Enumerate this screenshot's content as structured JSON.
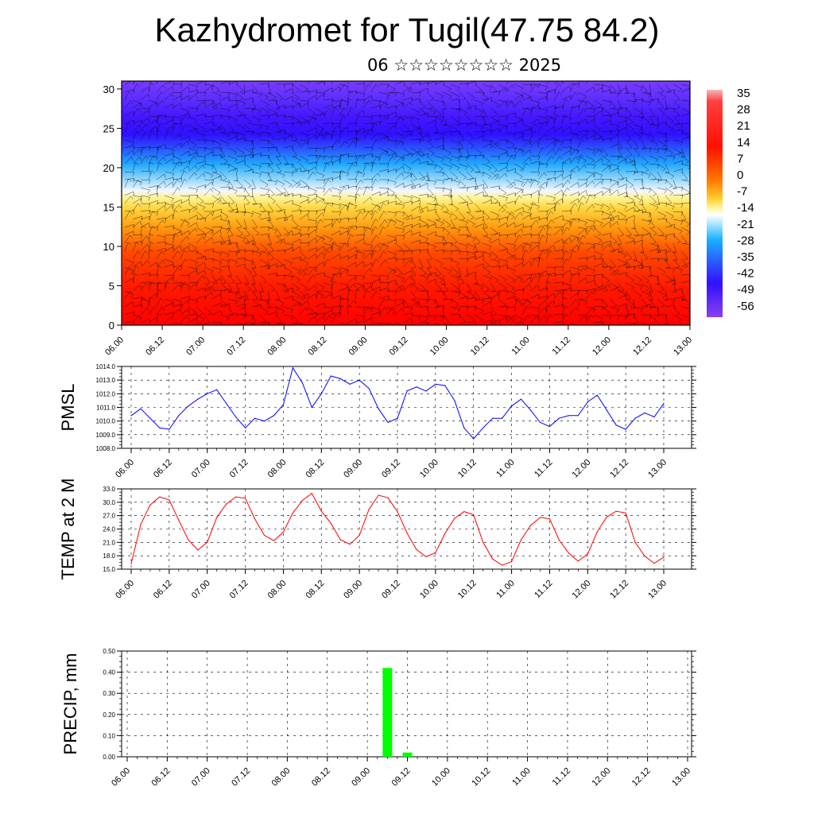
{
  "header": {
    "title": "Kazhydromet for Tugil(47.75 84.2)",
    "subtitle": "06 ☆☆☆☆☆☆☆☆ 2025"
  },
  "time_labels": [
    "06.00",
    "06.12",
    "07.00",
    "07.12",
    "08.00",
    "08.12",
    "09.00",
    "09.12",
    "10.00",
    "10.12",
    "11.00",
    "11.12",
    "12.00",
    "12.12",
    "13.00"
  ],
  "colors": {
    "pmsl_line": "#0000ff",
    "temp_line": "#ff0000",
    "precip_bar": "#00ff00",
    "colormap": [
      "#ff0000",
      "#ff5a00",
      "#ffa020",
      "#ffe04a",
      "#fff7b0",
      "#a8e0ff",
      "#28b0ff",
      "#3050ff",
      "#3000ff",
      "#7a2cff"
    ]
  },
  "chart_data": [
    {
      "id": "cross-section",
      "type": "heatmap",
      "title": "",
      "xlabel": "",
      "ylabel": "",
      "ylim": [
        0,
        31
      ],
      "y_ticks": [
        "0",
        "5",
        "10",
        "15",
        "20",
        "25",
        "30"
      ],
      "x_ticks": [
        "06.00",
        "06.12",
        "07.00",
        "07.12",
        "08.00",
        "08.12",
        "09.00",
        "09.12",
        "10.00",
        "10.12",
        "11.00",
        "11.12",
        "12.00",
        "12.12",
        "13.00"
      ],
      "colorbar_labels": [
        "35",
        "28",
        "21",
        "14",
        "7",
        "0",
        "-7",
        "-14",
        "-21",
        "-28",
        "-35",
        "-42",
        "-49",
        "-56"
      ],
      "wind_barbs": true
    },
    {
      "id": "pmsl",
      "type": "line",
      "ylabel": "PMSL",
      "ylim": [
        1008.0,
        1014.0
      ],
      "y_ticks": [
        "1008.0",
        "1009.0",
        "1010.0",
        "1011.0",
        "1012.0",
        "1013.0",
        "1014.0"
      ],
      "x_ticks": [
        "06.00",
        "06.12",
        "07.00",
        "07.12",
        "08.00",
        "08.12",
        "09.00",
        "09.12",
        "10.00",
        "10.12",
        "11.00",
        "11.12",
        "12.00",
        "12.12",
        "13.00"
      ],
      "series": [
        {
          "values": [
            1010.4,
            1010.9,
            1010.2,
            1009.5,
            1009.4,
            1010.4,
            1011.1,
            1011.6,
            1012.0,
            1012.3,
            1011.3,
            1010.3,
            1009.5,
            1010.2,
            1010.0,
            1010.4,
            1011.2,
            1013.9,
            1012.8,
            1011.0,
            1012.0,
            1013.3,
            1013.1,
            1012.7,
            1013.0,
            1012.4,
            1010.9,
            1009.9,
            1010.2,
            1012.2,
            1012.5,
            1012.2,
            1012.7,
            1012.6,
            1011.5,
            1009.5,
            1008.7,
            1009.5,
            1010.2,
            1010.2,
            1011.1,
            1011.6,
            1010.8,
            1009.9,
            1009.6,
            1010.2,
            1010.4,
            1010.4,
            1011.4,
            1011.9,
            1010.8,
            1009.7,
            1009.4,
            1010.2,
            1010.6,
            1010.3,
            1011.3
          ]
        }
      ]
    },
    {
      "id": "temp",
      "type": "line",
      "ylabel": "TEMP at 2 M",
      "ylim": [
        15.0,
        33.0
      ],
      "y_ticks": [
        "15.0",
        "18.0",
        "21.0",
        "24.0",
        "27.0",
        "30.0",
        "33.0"
      ],
      "x_ticks": [
        "06.00",
        "06.12",
        "07.00",
        "07.12",
        "08.00",
        "08.12",
        "09.00",
        "09.12",
        "10.00",
        "10.12",
        "11.00",
        "11.12",
        "12.00",
        "12.12",
        "13.00"
      ],
      "series": [
        {
          "values": [
            16.2,
            25.0,
            29.4,
            31.2,
            30.5,
            26.0,
            21.6,
            19.3,
            21.0,
            26.6,
            29.6,
            31.2,
            30.9,
            26.3,
            22.6,
            21.4,
            23.3,
            27.6,
            30.4,
            32.0,
            28.0,
            25.3,
            21.6,
            20.6,
            22.6,
            28.4,
            31.6,
            31.0,
            27.9,
            23.1,
            19.4,
            17.8,
            18.7,
            23.0,
            26.4,
            27.9,
            27.2,
            21.0,
            17.3,
            15.9,
            16.7,
            21.6,
            24.8,
            26.6,
            26.3,
            21.5,
            18.6,
            16.8,
            18.4,
            23.4,
            26.7,
            28.0,
            27.6,
            21.0,
            17.9,
            16.3,
            17.7
          ]
        }
      ]
    },
    {
      "id": "precip",
      "type": "bar",
      "ylabel": "PRECIP, mm",
      "ylim": [
        0.0,
        0.5
      ],
      "y_ticks": [
        "0.00",
        "0.10",
        "0.20",
        "0.30",
        "0.40",
        "0.50"
      ],
      "x_ticks": [
        "06.00",
        "06.12",
        "07.00",
        "07.12",
        "08.00",
        "08.12",
        "09.00",
        "09.12",
        "10.00",
        "10.12",
        "11.00",
        "11.12",
        "12.00",
        "12.12",
        "13.00"
      ],
      "bars": [
        {
          "time": "09.06",
          "value": 0.42
        },
        {
          "time": "09.12",
          "value": 0.02
        }
      ]
    }
  ]
}
